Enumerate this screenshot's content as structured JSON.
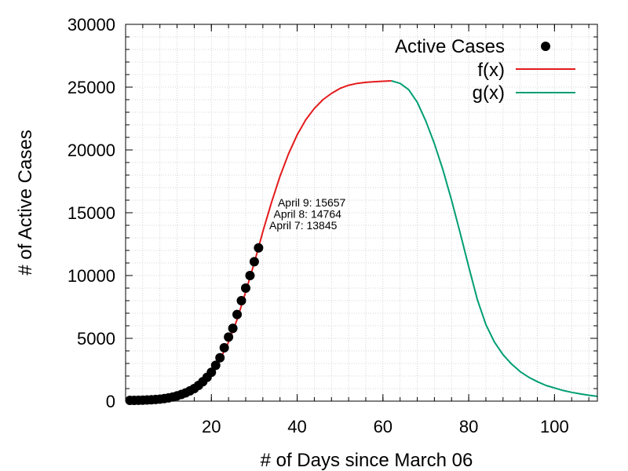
{
  "chart_data": {
    "type": "scatter",
    "xlabel": "# of Days since March 06",
    "ylabel": "# of Active Cases",
    "xlim": [
      0,
      110
    ],
    "ylim": [
      0,
      30000
    ],
    "x_ticks": [
      20,
      40,
      60,
      80,
      100
    ],
    "y_ticks": [
      0,
      5000,
      10000,
      15000,
      20000,
      25000,
      30000
    ],
    "x_minor_step": 4,
    "y_minor_step": 1000,
    "grid": true,
    "legend_position": "top-right",
    "legend": [
      {
        "label": "Active Cases",
        "kind": "point",
        "color": "#000000"
      },
      {
        "label": "f(x)",
        "kind": "line",
        "color": "#e41a1c"
      },
      {
        "label": "g(x)",
        "kind": "line",
        "color": "#009e73"
      }
    ],
    "points": {
      "name": "Active Cases",
      "x": [
        1,
        2,
        3,
        4,
        5,
        6,
        7,
        8,
        9,
        10,
        11,
        12,
        13,
        14,
        15,
        16,
        17,
        18,
        19,
        20,
        21,
        22,
        23,
        24,
        25,
        26,
        27,
        28,
        29,
        30,
        31
      ],
      "y": [
        60,
        60,
        70,
        80,
        90,
        110,
        130,
        160,
        200,
        260,
        330,
        420,
        530,
        660,
        820,
        1000,
        1250,
        1550,
        1900,
        2300,
        2850,
        3450,
        4250,
        5100,
        5800,
        6900,
        8000,
        9000,
        10000,
        11100,
        12200
      ]
    },
    "f_curve": {
      "name": "f(x)",
      "color": "#e41a1c",
      "x": [
        1,
        4,
        8,
        10,
        12,
        14,
        16,
        18,
        20,
        22,
        24,
        26,
        28,
        30,
        32,
        34,
        36,
        38,
        40,
        42,
        44,
        46,
        48,
        50,
        52,
        54,
        56,
        58,
        60,
        62
      ],
      "y": [
        80,
        90,
        170,
        270,
        410,
        650,
        1000,
        1500,
        2200,
        3300,
        4700,
        6500,
        8700,
        11000,
        13500,
        15800,
        17900,
        19700,
        21200,
        22400,
        23300,
        24000,
        24500,
        24900,
        25150,
        25300,
        25380,
        25430,
        25470,
        25500
      ]
    },
    "g_curve": {
      "name": "g(x)",
      "color": "#009e73",
      "x": [
        62,
        64,
        66,
        68,
        70,
        72,
        74,
        76,
        78,
        80,
        82,
        84,
        86,
        88,
        90,
        92,
        94,
        96,
        98,
        100,
        102,
        104,
        106,
        108,
        110
      ],
      "y": [
        25500,
        25300,
        24800,
        23800,
        22300,
        20500,
        18400,
        16000,
        13400,
        10700,
        8100,
        6100,
        4700,
        3700,
        2950,
        2350,
        1900,
        1550,
        1250,
        1050,
        850,
        700,
        580,
        470,
        380
      ]
    },
    "annotations": [
      {
        "text": "April 9: 15657",
        "x": 35.5,
        "y": 15500
      },
      {
        "text": "April 8: 14764",
        "x": 34.5,
        "y": 14600
      },
      {
        "text": "April 7: 13845",
        "x": 33.5,
        "y": 13700
      }
    ]
  }
}
